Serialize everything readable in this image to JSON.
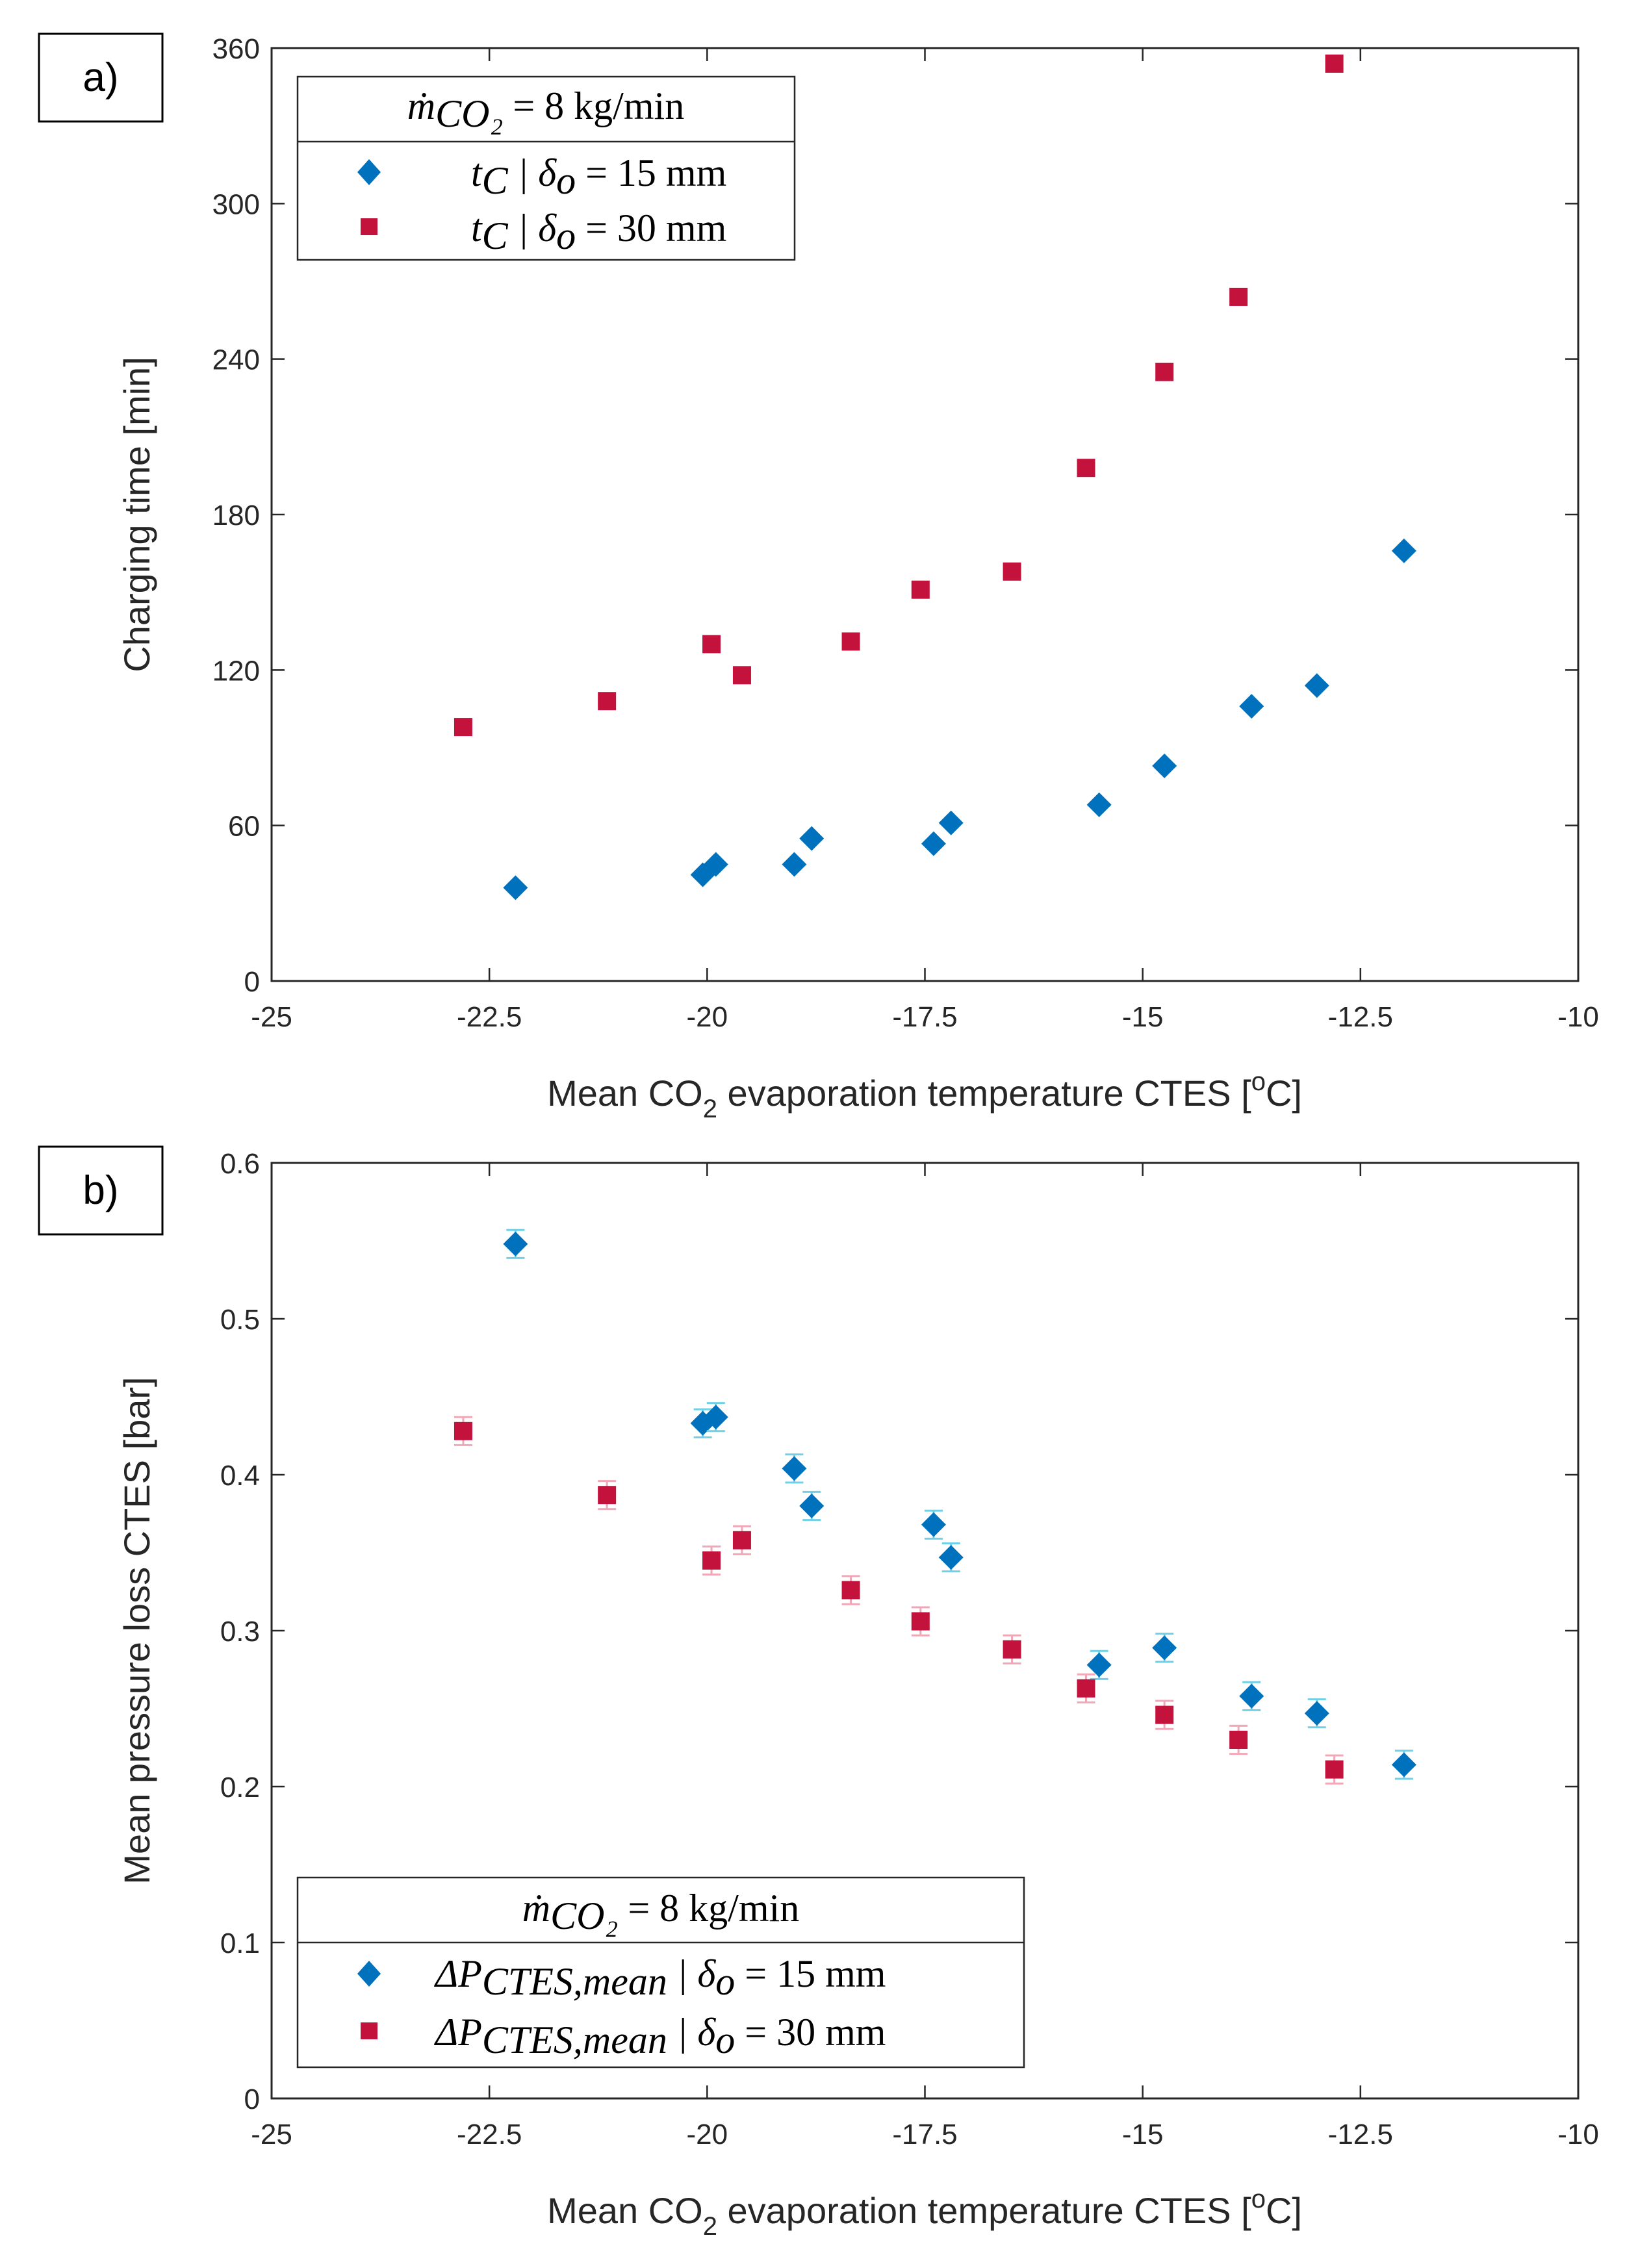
{
  "colors": {
    "series15": "#0072BD",
    "series30": "#C3123C",
    "errorbar15": "#6FD0E6",
    "errorbar30": "#F2A7B7",
    "axis": "#262626"
  },
  "chart_data": [
    {
      "id": "a",
      "type": "scatter",
      "panel_label": "a)",
      "xlabel": "Mean CO2 evaporation temperature CTES [oC]",
      "xlabel_parts": {
        "pre": "Mean CO",
        "sub": "2",
        "mid": " evaporation temperature CTES [",
        "sup": "o",
        "post": "C]"
      },
      "ylabel": "Charging time [min]",
      "xlim": [
        -25,
        -10
      ],
      "ylim": [
        0,
        360
      ],
      "xticks": [
        -25,
        -22.5,
        -20,
        -17.5,
        -15,
        -12.5,
        -10
      ],
      "yticks": [
        0,
        60,
        120,
        180,
        240,
        300,
        360
      ],
      "legend": {
        "position": "top-left",
        "title": "ṁ_CO2 = 8 kg/min",
        "title_parts": {
          "var": "ṁ",
          "sub": "CO₂",
          "rest": " = 8 kg/min"
        },
        "entries": [
          {
            "var": "t",
            "sub": "C",
            "rest": " | δ",
            "sub2": "o",
            "value": " = 15 mm"
          },
          {
            "var": "t",
            "sub": "C",
            "rest": " | δ",
            "sub2": "o",
            "value": " = 30 mm"
          }
        ]
      },
      "series": [
        {
          "name": "t_C | δo = 15 mm",
          "marker": "diamond",
          "x": [
            -22.2,
            -20.05,
            -19.9,
            -19.0,
            -18.8,
            -17.4,
            -17.2,
            -15.5,
            -14.75,
            -13.75,
            -13.0,
            -12.0
          ],
          "y": [
            36,
            41,
            45,
            45,
            55,
            53,
            61,
            68,
            83,
            106,
            114,
            166
          ]
        },
        {
          "name": "t_C | δo = 30 mm",
          "marker": "square",
          "x": [
            -22.8,
            -21.15,
            -19.95,
            -19.6,
            -18.35,
            -17.55,
            -16.5,
            -15.65,
            -14.75,
            -13.9,
            -12.8
          ],
          "y": [
            98,
            108,
            130,
            118,
            131,
            151,
            158,
            198,
            235,
            264,
            354
          ]
        }
      ]
    },
    {
      "id": "b",
      "type": "scatter",
      "panel_label": "b)",
      "xlabel": "Mean CO2 evaporation temperature CTES [oC]",
      "xlabel_parts": {
        "pre": "Mean CO",
        "sub": "2",
        "mid": " evaporation temperature CTES [",
        "sup": "o",
        "post": "C]"
      },
      "ylabel": "Mean pressure loss CTES [bar]",
      "xlim": [
        -25,
        -10
      ],
      "ylim": [
        0,
        0.6
      ],
      "xticks": [
        -25,
        -22.5,
        -20,
        -17.5,
        -15,
        -12.5,
        -10
      ],
      "yticks": [
        0,
        0.1,
        0.2,
        0.3,
        0.4,
        0.5,
        0.6
      ],
      "legend": {
        "position": "bottom-left",
        "title": "ṁ_CO2 = 8 kg/min",
        "title_parts": {
          "var": "ṁ",
          "sub": "CO₂",
          "rest": " = 8 kg/min"
        },
        "entries": [
          {
            "var": "ΔP",
            "sub": "CTES,mean",
            "rest": " | δ",
            "sub2": "o",
            "value": " = 15 mm"
          },
          {
            "var": "ΔP",
            "sub": "CTES,mean",
            "rest": " | δ",
            "sub2": "o",
            "value": " = 30 mm"
          }
        ]
      },
      "error": 0.009,
      "series": [
        {
          "name": "ΔP_CTES,mean | δo = 15 mm",
          "marker": "diamond",
          "x": [
            -22.2,
            -20.05,
            -19.9,
            -19.0,
            -18.8,
            -17.4,
            -17.2,
            -15.5,
            -14.75,
            -13.75,
            -13.0,
            -12.0
          ],
          "y": [
            0.548,
            0.433,
            0.437,
            0.404,
            0.38,
            0.368,
            0.347,
            0.278,
            0.289,
            0.258,
            0.247,
            0.214
          ]
        },
        {
          "name": "ΔP_CTES,mean | δo = 30 mm",
          "marker": "square",
          "x": [
            -22.8,
            -21.15,
            -19.95,
            -19.6,
            -18.35,
            -17.55,
            -16.5,
            -15.65,
            -14.75,
            -13.9,
            -12.8
          ],
          "y": [
            0.428,
            0.387,
            0.345,
            0.358,
            0.326,
            0.306,
            0.288,
            0.263,
            0.246,
            0.23,
            0.211
          ]
        }
      ]
    }
  ]
}
